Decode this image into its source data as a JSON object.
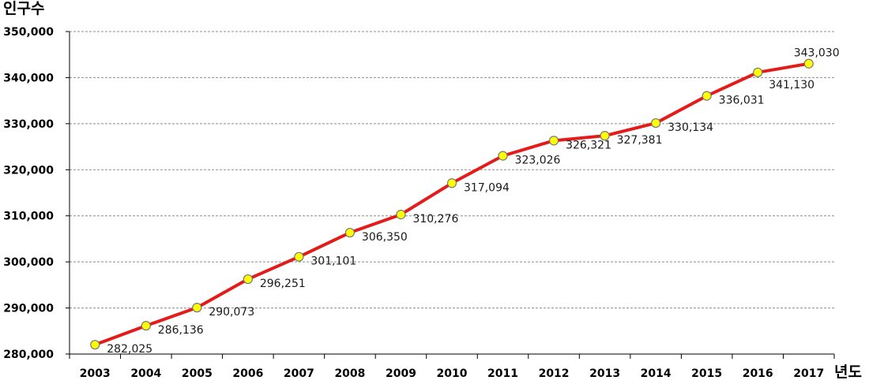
{
  "chart_data": {
    "type": "line",
    "ylabel": "인구수",
    "xlabel": "년도",
    "categories": [
      "2003",
      "2004",
      "2005",
      "2006",
      "2007",
      "2008",
      "2009",
      "2010",
      "2011",
      "2012",
      "2013",
      "2014",
      "2015",
      "2016",
      "2017"
    ],
    "series": [
      {
        "values": [
          282025,
          286136,
          290073,
          296251,
          301101,
          306350,
          310276,
          317094,
          323026,
          326321,
          327381,
          330134,
          336031,
          341130,
          343030
        ],
        "labels": [
          "282,025",
          "286,136",
          "290,073",
          "296,251",
          "301,101",
          "306,350",
          "310,276",
          "317,094",
          "323,026",
          "326,321",
          "327,381",
          "330,134",
          "336,031",
          "341,130",
          "343,030"
        ],
        "color": "#e31b1b",
        "marker_color": "#ffff00"
      }
    ],
    "ylim": [
      280000,
      350000
    ],
    "yticks": [
      "280,000",
      "290,000",
      "300,000",
      "310,000",
      "320,000",
      "330,000",
      "340,000",
      "350,000"
    ],
    "grid": true,
    "legend": "none"
  }
}
